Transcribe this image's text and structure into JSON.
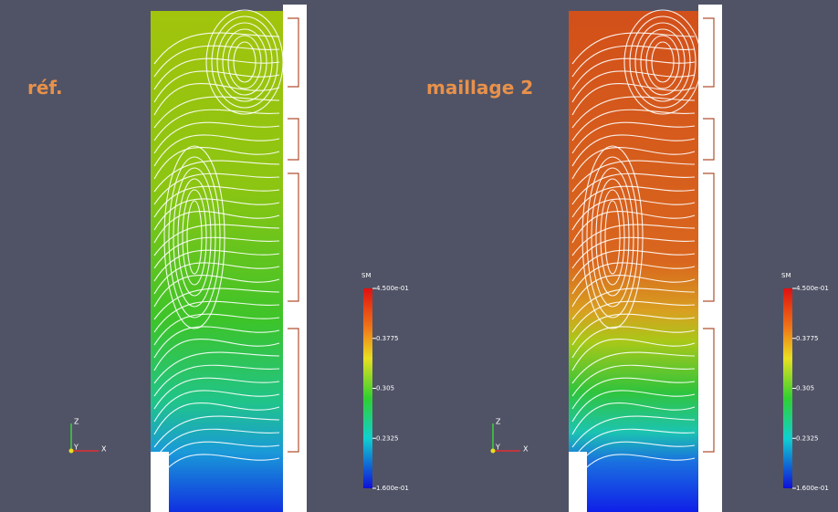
{
  "panels": [
    {
      "label": "réf.",
      "colorbar": {
        "title": "SM",
        "labels": [
          "4.500e-01",
          "0.3775",
          "0.305",
          "0.2325",
          "1.600e-01"
        ]
      },
      "axes": {
        "z": "Z",
        "y": "Y",
        "x": "X"
      }
    },
    {
      "label": "maillage 2",
      "colorbar": {
        "title": "SM",
        "labels": [
          "4.500e-01",
          "0.3775",
          "0.305",
          "0.2325",
          "1.600e-01"
        ]
      },
      "axes": {
        "z": "Z",
        "y": "Y",
        "x": "X"
      }
    }
  ]
}
